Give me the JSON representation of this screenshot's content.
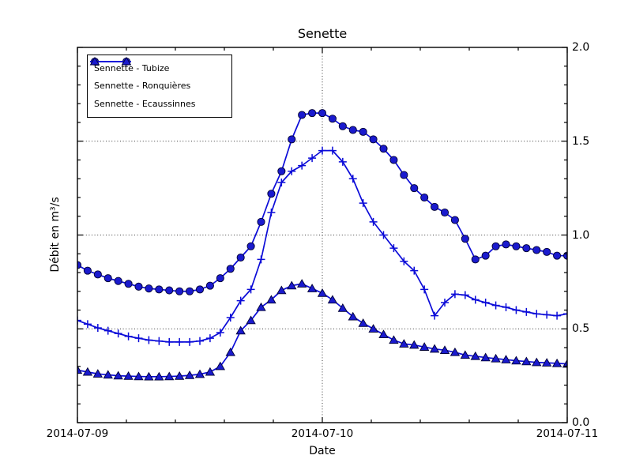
{
  "figure": {
    "background": "#ffffff"
  },
  "chart_data": {
    "type": "line",
    "title": "Senette",
    "xlabel": "Date",
    "ylabel": "Débit en m³/s",
    "xtick_labels": [
      "2014-07-09",
      "2014-07-10",
      "2014-07-11"
    ],
    "ytick_labels": [
      "0.0",
      "0.5",
      "1.0",
      "1.5",
      "2.0"
    ],
    "ylim": [
      0.0,
      2.0
    ],
    "x_start": "2014-07-09",
    "x_end": "2014-07-11",
    "x_step_hours": 1,
    "x_total_hours": 48,
    "grid": {
      "horizontal_values": [
        0.5,
        1.0,
        1.5
      ],
      "vertical_hours": [
        24
      ],
      "style": "dotted"
    },
    "legend_position": "upper left",
    "line_color": "#0b0bd8",
    "marker_fill": "#1a1ace",
    "marker_edge": "#000033",
    "series": [
      {
        "id": "tubize",
        "name": "Sennette - Tubize",
        "marker": "circle",
        "values": [
          0.84,
          0.81,
          0.79,
          0.77,
          0.755,
          0.74,
          0.725,
          0.715,
          0.71,
          0.705,
          0.7,
          0.7,
          0.71,
          0.73,
          0.77,
          0.82,
          0.88,
          0.94,
          1.07,
          1.22,
          1.34,
          1.51,
          1.64,
          1.65,
          1.65,
          1.62,
          1.58,
          1.56,
          1.55,
          1.51,
          1.46,
          1.4,
          1.32,
          1.25,
          1.2,
          1.15,
          1.12,
          1.08,
          0.98,
          0.87,
          0.89,
          0.94,
          0.95,
          0.94,
          0.93,
          0.92,
          0.91,
          0.89,
          0.89
        ]
      },
      {
        "id": "ronquieres",
        "name": "Sennette - Ronquières",
        "marker": "plus",
        "values": [
          0.545,
          0.525,
          0.505,
          0.49,
          0.475,
          0.46,
          0.45,
          0.44,
          0.435,
          0.43,
          0.43,
          0.43,
          0.435,
          0.45,
          0.48,
          0.56,
          0.65,
          0.71,
          0.87,
          1.12,
          1.28,
          1.34,
          1.37,
          1.41,
          1.45,
          1.45,
          1.39,
          1.3,
          1.17,
          1.07,
          1.0,
          0.93,
          0.86,
          0.81,
          0.71,
          0.57,
          0.64,
          0.685,
          0.68,
          0.655,
          0.64,
          0.625,
          0.615,
          0.6,
          0.59,
          0.58,
          0.575,
          0.57,
          0.58
        ]
      },
      {
        "id": "ecaussinnes",
        "name": "Sennette - Ecaussinnes",
        "marker": "triangle",
        "values": [
          0.28,
          0.27,
          0.26,
          0.255,
          0.25,
          0.248,
          0.246,
          0.245,
          0.245,
          0.246,
          0.248,
          0.252,
          0.258,
          0.27,
          0.3,
          0.375,
          0.49,
          0.545,
          0.615,
          0.655,
          0.705,
          0.73,
          0.74,
          0.715,
          0.69,
          0.655,
          0.61,
          0.565,
          0.53,
          0.5,
          0.47,
          0.44,
          0.42,
          0.414,
          0.403,
          0.393,
          0.386,
          0.375,
          0.36,
          0.354,
          0.347,
          0.341,
          0.336,
          0.33,
          0.326,
          0.321,
          0.319,
          0.316,
          0.313
        ]
      }
    ]
  }
}
